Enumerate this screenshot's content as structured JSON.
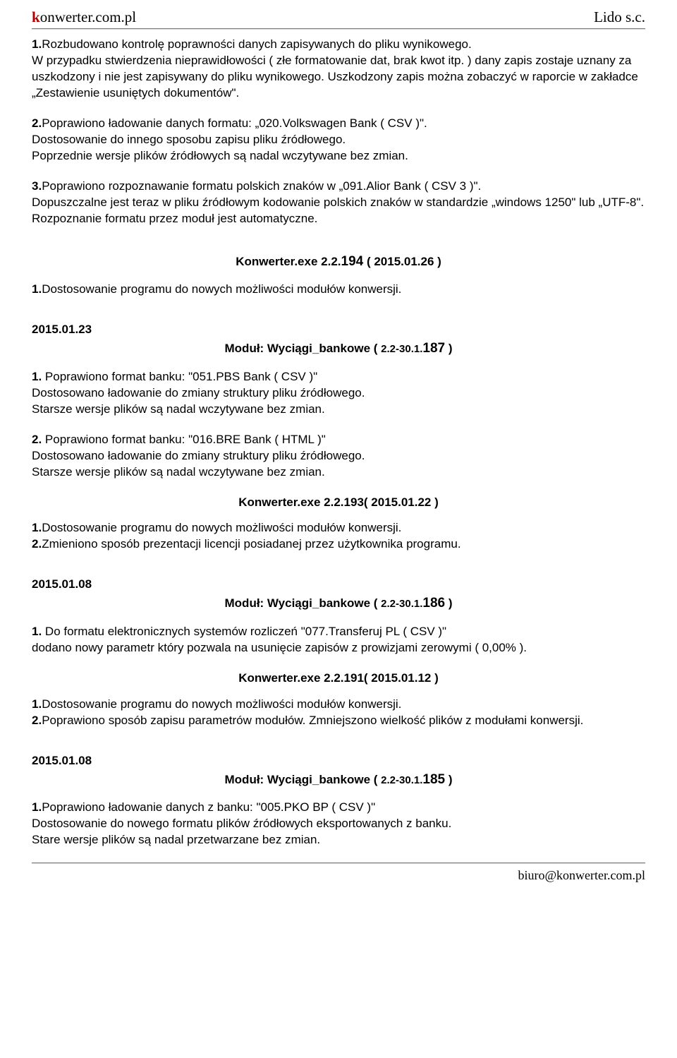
{
  "header": {
    "site_prefix": "k",
    "site_rest": "onwerter.com.pl",
    "company": "Lido s.c."
  },
  "footer": {
    "email": "biuro@konwerter.com.pl"
  },
  "top": {
    "p1_lead": "1.",
    "p1_body": "Rozbudowano  kontrolę poprawności danych zapisywanych do pliku wynikowego.",
    "p1_l2": "W przypadku stwierdzenia nieprawidłowości ( złe formatowanie dat, brak kwot itp. ) dany zapis zostaje uznany za uszkodzony i nie jest zapisywany do pliku wynikowego. Uszkodzony zapis można zobaczyć w raporcie w zakładce „Zestawienie usuniętych dokumentów\".",
    "p2_lead": "2.",
    "p2_body": "Poprawiono ładowanie danych formatu:  „020.Volkswagen Bank ( CSV )\".",
    "p2_l2": "Dostosowanie do innego sposobu zapisu pliku źródłowego.",
    "p2_l3": "Poprzednie wersje plików źródłowych są nadal wczytywane bez zmian.",
    "p3_lead": "3.",
    "p3_body": "Poprawiono rozpoznawanie formatu polskich znaków  w „091.Alior Bank ( CSV 3 )\".",
    "p3_l2": "Dopuszczalne jest teraz w pliku źródłowym kodowanie polskich znaków  w standardzie „windows 1250\" lub „UTF-8\".",
    "p3_l3": "Rozpoznanie formatu przez moduł jest automatyczne."
  },
  "sec_194": {
    "heading_pre": "Konwerter.exe 2.2.",
    "heading_num": "194",
    "heading_post": " ( 2015.01.26 )",
    "l1_lead": "1.",
    "l1": "Dostosowanie programu do nowych możliwości modułów konwersji."
  },
  "sec_187": {
    "date": "2015.01.23",
    "module_pre": "Moduł: Wyciągi_bankowe ( ",
    "module_mid": "2.2-30.1.",
    "module_num": "187",
    "module_post": " )",
    "p1_lead": "1.",
    "p1_body": " Poprawiono format banku: \"051.PBS Bank ( CSV )\"",
    "p1_l2": "Dostosowano ładowanie do zmiany struktury pliku źródłowego.",
    "p1_l3": "Starsze wersje plików są nadal wczytywane bez zmian.",
    "p2_lead": "2.",
    "p2_body": " Poprawiono format banku: \"016.BRE Bank ( HTML )\"",
    "p2_l2": "Dostosowano ładowanie do zmiany struktury pliku źródłowego.",
    "p2_l3": "Starsze wersje plików są nadal wczytywane bez zmian."
  },
  "sec_193": {
    "heading": "Konwerter.exe 2.2.193( 2015.01.22 )",
    "l1_lead": "1.",
    "l1": "Dostosowanie programu do nowych możliwości modułów konwersji.",
    "l2_lead": "2.",
    "l2": "Zmieniono sposób prezentacji licencji posiadanej przez użytkownika programu."
  },
  "sec_186": {
    "date": "2015.01.08",
    "module_pre": "Moduł: Wyciągi_bankowe ( ",
    "module_mid": "2.2-30.1.",
    "module_num": "186",
    "module_post": " )",
    "p1_lead": "1.",
    "p1_body": " Do formatu elektronicznych systemów rozliczeń  \"077.Transferuj PL ( CSV )\"",
    "p1_l2": "dodano nowy parametr który pozwala na usunięcie zapisów z prowizjami zerowymi ( 0,00% )."
  },
  "sec_191": {
    "heading": "Konwerter.exe 2.2.191( 2015.01.12 )",
    "l1_lead": "1.",
    "l1": "Dostosowanie programu do nowych możliwości modułów konwersji.",
    "l2_lead": "2.",
    "l2": "Poprawiono sposób zapisu parametrów modułów. Zmniejszono wielkość plików z modułami konwersji."
  },
  "sec_185": {
    "date": "2015.01.08",
    "module_pre": "Moduł: Wyciągi_bankowe ( ",
    "module_mid": "2.2-30.1.",
    "module_num": "185",
    "module_post": " )",
    "p1_lead": "1.",
    "p1_body": "Poprawiono ładowanie danych z banku: \"005.PKO BP ( CSV )\"",
    "p1_l2": "Dostosowanie do nowego formatu plików źródłowych eksportowanych z banku.",
    "p1_l3": "Stare wersje plików są nadal przetwarzane bez zmian."
  }
}
